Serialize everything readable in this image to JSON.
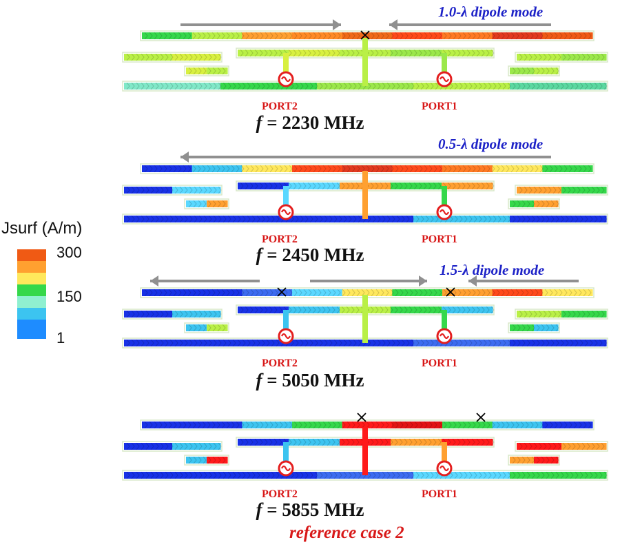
{
  "colors": {
    "scale": [
      "#f05a14",
      "#ffa030",
      "#ffe85c",
      "#35d84a",
      "#8ff0d0",
      "#3cc4f0",
      "#1e8cff"
    ],
    "low": "#1832e6",
    "arrow": "#909090",
    "port": "#e41e1e",
    "mode_text": "#1d22c7",
    "frame": "#d8e8c8"
  },
  "legend": {
    "title": "Jsurf (A/m)",
    "values": [
      "300",
      "150",
      "1"
    ]
  },
  "panels": [
    {
      "id": "p2230",
      "freq_prefix": "f",
      "freq_text": " = 2230 MHz",
      "mode_label": "1.0-λ dipole mode",
      "ports": [
        "PORT2",
        "PORT1"
      ],
      "colors": {
        "top": [
          "#35d84a",
          "#b9f046",
          "#ffa030",
          "#ff8a25",
          "#f06a18",
          "#ff4a1a",
          "#ff7a22",
          "#e23a1e",
          "#f05a14"
        ],
        "mid": [
          "#b9f046",
          "#d8f040",
          "#b9f046",
          "#9be84a",
          "#b9f046"
        ],
        "bot": [
          "#80e8c8",
          "#35d84a",
          "#9be84a",
          "#b9f046",
          "#5ad8a0"
        ]
      }
    },
    {
      "id": "p2450",
      "freq_prefix": "f",
      "freq_text": " = 2450 MHz",
      "mode_label": "0.5-λ dipole mode",
      "ports": [
        "PORT2",
        "PORT1"
      ],
      "colors": {
        "top": [
          "#1832e6",
          "#3cc4f0",
          "#ffe85c",
          "#ff4a1a",
          "#e23a1e",
          "#ff4a1a",
          "#ff7a22",
          "#ffe85c",
          "#35d84a"
        ],
        "mid": [
          "#1832e6",
          "#5ad8ff",
          "#ffa030",
          "#35d84a",
          "#ffa030"
        ],
        "bot": [
          "#1832e6",
          "#1832e6",
          "#1832e6",
          "#3cc4f0",
          "#1832e6"
        ]
      }
    },
    {
      "id": "p5050",
      "freq_prefix": "f",
      "freq_text": " = 5050 MHz",
      "mode_label": "1.5-λ dipole mode",
      "ports": [
        "PORT2",
        "PORT1"
      ],
      "colors": {
        "top": [
          "#1832e6",
          "#1832e6",
          "#3c6cf0",
          "#5ad8ff",
          "#ffe85c",
          "#35d84a",
          "#ffa030",
          "#ff4a1a",
          "#ffe85c"
        ],
        "mid": [
          "#1832e6",
          "#3cc4f0",
          "#b9f046",
          "#35d84a",
          "#3cc4f0"
        ],
        "bot": [
          "#1832e6",
          "#1832e6",
          "#1832e6",
          "#3c6cf0",
          "#1832e6"
        ]
      }
    },
    {
      "id": "p5855",
      "freq_prefix": "f",
      "freq_text": " = 5855 MHz",
      "mode_label": "",
      "ports": [
        "PORT2",
        "PORT1"
      ],
      "colors": {
        "top": [
          "#1832e6",
          "#1832e6",
          "#3cc4f0",
          "#35d84a",
          "#ff1a1a",
          "#e21414",
          "#35d84a",
          "#3cc4f0",
          "#1832e6"
        ],
        "mid": [
          "#1832e6",
          "#3cc4f0",
          "#ff1a1a",
          "#ffa030",
          "#ff1a1a"
        ],
        "bot": [
          "#1832e6",
          "#1832e6",
          "#3c6cf0",
          "#5ad8ff",
          "#35d84a"
        ]
      }
    }
  ],
  "footer": "reference case 2"
}
